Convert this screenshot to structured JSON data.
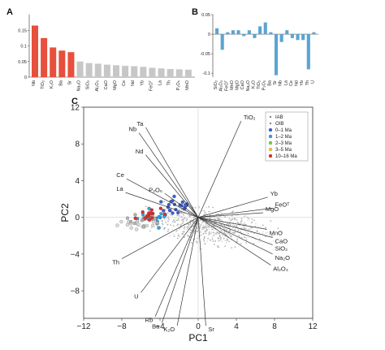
{
  "chart_data": [
    {
      "panel": "A",
      "type": "bar",
      "categories": [
        "Nb",
        "TiO2",
        "K2O",
        "Ba",
        "Sr",
        "Na2O",
        "SiO2",
        "Al2O3",
        "CaO",
        "MgO",
        "Ce",
        "Nd",
        "Yb",
        "FeOT",
        "La",
        "Th",
        "P2O5",
        "MnO"
      ],
      "values": [
        0.165,
        0.125,
        0.095,
        0.085,
        0.08,
        0.05,
        0.045,
        0.043,
        0.04,
        0.038,
        0.036,
        0.035,
        0.033,
        0.03,
        0.028,
        0.026,
        0.025,
        0.024
      ],
      "highlight_count": 5,
      "colors": {
        "highlight": "#e6503c",
        "other": "#c7c7c7"
      },
      "ylim": [
        0,
        0.2
      ],
      "yticks": [
        "0",
        "0.05",
        "0.1",
        "0.15"
      ]
    },
    {
      "panel": "B",
      "type": "bar",
      "categories": [
        "SiO2",
        "Al2O3",
        "FeOT",
        "MnO",
        "MgO",
        "CaO",
        "Na2O",
        "K2O",
        "TiO2",
        "P2O5",
        "Ba",
        "Sr",
        "Nb",
        "La",
        "Ce",
        "Nd",
        "Yb",
        "Th",
        "U"
      ],
      "values": [
        0.015,
        -0.04,
        0.005,
        0.01,
        0.01,
        -0.005,
        0.01,
        -0.01,
        0.02,
        0.03,
        0.005,
        -0.105,
        -0.02,
        0.01,
        -0.01,
        -0.015,
        -0.015,
        -0.09,
        0.005
      ],
      "color": "#5aa5d2",
      "ylim": [
        -0.11,
        0.05
      ],
      "yticks": [
        "0.05",
        "0",
        "-0.05",
        "-0.1"
      ]
    },
    {
      "panel": "C",
      "type": "scatter",
      "xlabel": "PC1",
      "ylabel": "PC2",
      "xlim": [
        -12,
        12
      ],
      "ylim": [
        -11,
        12
      ],
      "xticks": [
        -12,
        -8,
        -4,
        0,
        4,
        8,
        12
      ],
      "yticks": [
        -8,
        -4,
        0,
        4,
        8,
        12
      ],
      "loadings": [
        {
          "label": "TiO₂",
          "x": 4.5,
          "y": 10.5
        },
        {
          "label": "Ta",
          "x": -5.5,
          "y": 9.8
        },
        {
          "label": "Nb",
          "x": -6.2,
          "y": 9.2
        },
        {
          "label": "Nd",
          "x": -5.5,
          "y": 6.8
        },
        {
          "label": "Ce",
          "x": -7.5,
          "y": 4.2
        },
        {
          "label": "La",
          "x": -7.6,
          "y": 2.7
        },
        {
          "label": "P₂O₅",
          "x": -3.5,
          "y": 2.6
        },
        {
          "label": "Yb",
          "x": 7.3,
          "y": 2.2
        },
        {
          "label": "FeOᵀ",
          "x": 7.8,
          "y": 1.0
        },
        {
          "label": "MgO",
          "x": 6.8,
          "y": 0.5
        },
        {
          "label": "MnO",
          "x": 7.2,
          "y": -1.3
        },
        {
          "label": "CaO",
          "x": 7.8,
          "y": -2.2
        },
        {
          "label": "SiO₂",
          "x": 7.8,
          "y": -3.0
        },
        {
          "label": "Na₂O",
          "x": 7.8,
          "y": -4.0
        },
        {
          "label": "Al₂O₃",
          "x": 7.6,
          "y": -5.2
        },
        {
          "label": "Th",
          "x": -8.0,
          "y": -4.5
        },
        {
          "label": "U",
          "x": -6.0,
          "y": -8.2
        },
        {
          "label": "Rb",
          "x": -4.5,
          "y": -10.8
        },
        {
          "label": "Ba",
          "x": -3.8,
          "y": -11.5
        },
        {
          "label": "K₂O",
          "x": -2.2,
          "y": -11.8
        },
        {
          "label": "Sr",
          "x": 0.8,
          "y": -11.8
        }
      ],
      "legend": [
        {
          "name": "IAB",
          "marker": "dot",
          "color": "#b3b3b3"
        },
        {
          "name": "OIB",
          "marker": "dot",
          "color": "#dcdcdc"
        },
        {
          "name": "0–1 Ma",
          "marker": "circle",
          "color": "#3a5fd8"
        },
        {
          "name": "1–2 Ma",
          "marker": "circle",
          "color": "#32a0e6"
        },
        {
          "name": "2–3 Ma",
          "marker": "circle",
          "color": "#7ed348"
        },
        {
          "name": "3–5 Ma",
          "marker": "circle",
          "color": "#f2d23c"
        },
        {
          "name": "10–16 Ma",
          "marker": "circle",
          "color": "#d7302a"
        }
      ],
      "legend_position": "top-right",
      "grid": false
    }
  ]
}
